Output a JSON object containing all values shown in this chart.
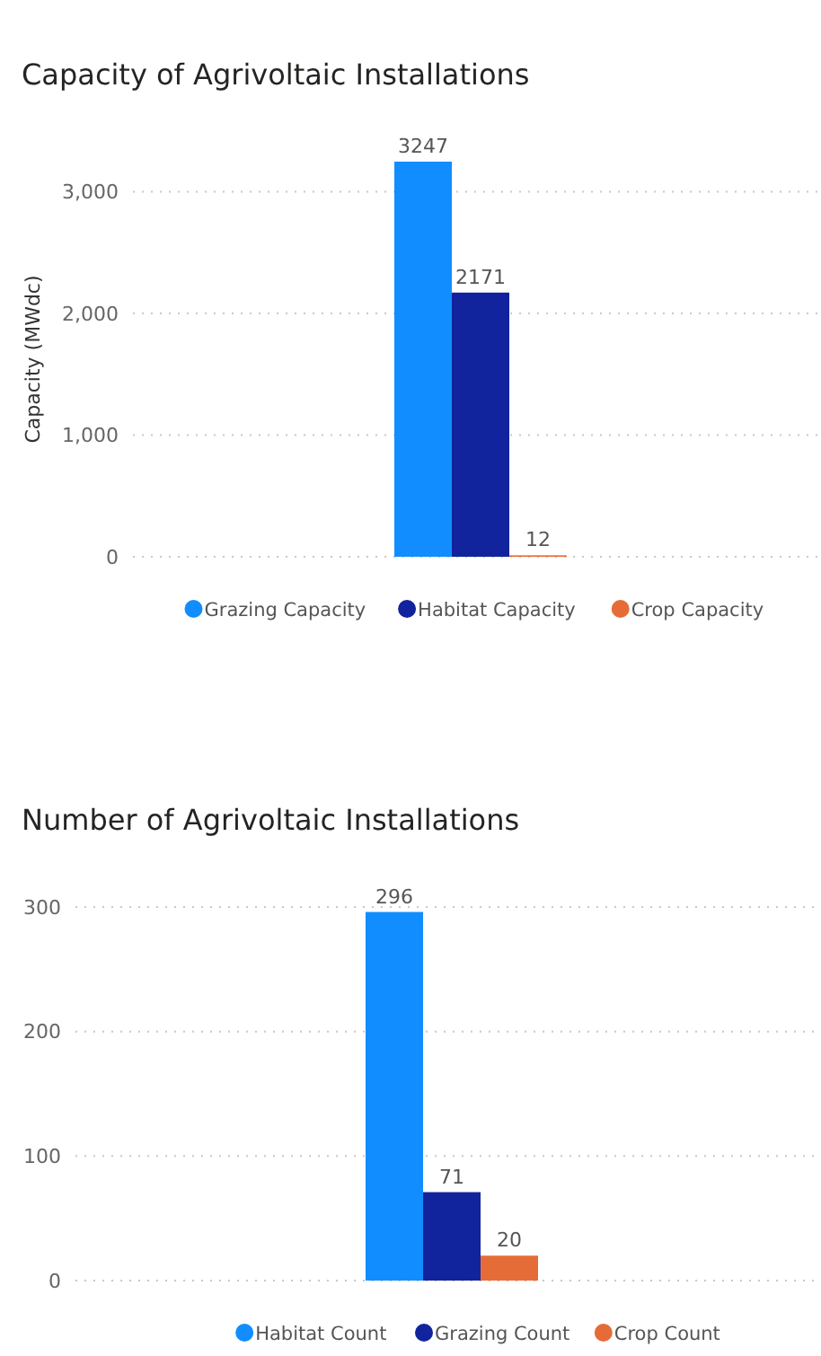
{
  "chart_data": [
    {
      "type": "bar",
      "title": "Capacity of Agrivoltaic Installations",
      "ylabel": "Capacity (MWdc)",
      "categories": [
        null
      ],
      "ylim": [
        0,
        3247
      ],
      "series": [
        {
          "name": "Grazing Capacity",
          "color": "#118dff",
          "values": [
            3247
          ]
        },
        {
          "name": "Habitat Capacity",
          "color": "#12239e",
          "values": [
            2171
          ]
        },
        {
          "name": "Crop Capacity",
          "color": "#e66c37",
          "values": [
            12
          ]
        }
      ],
      "yticks": [
        0,
        {
          "value": 1000,
          "label": "1,000"
        },
        {
          "value": 2000,
          "label": "2,000"
        },
        {
          "value": 3000,
          "label": "3,000"
        }
      ],
      "grid": "y",
      "legend": "bottom",
      "data_labels": true
    },
    {
      "type": "bar",
      "title": "Number of Agrivoltaic Installations",
      "categories": [
        null
      ],
      "ylim": [
        0,
        300
      ],
      "series": [
        {
          "name": "Habitat Count",
          "color": "#118dff",
          "values": [
            296
          ]
        },
        {
          "name": "Grazing Count",
          "color": "#12239e",
          "values": [
            71
          ]
        },
        {
          "name": "Crop Count",
          "color": "#e66c37",
          "values": [
            20
          ]
        }
      ],
      "yticks": [
        0,
        100,
        200,
        300
      ],
      "grid": "y",
      "legend": "bottom",
      "data_labels": true
    }
  ]
}
